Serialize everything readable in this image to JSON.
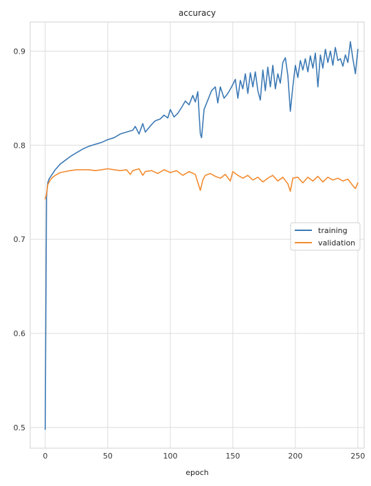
{
  "chart_data": {
    "type": "line",
    "title": "accuracy",
    "xlabel": "epoch",
    "ylabel": "",
    "xlim": [
      -12,
      255
    ],
    "ylim": [
      0.478,
      0.931
    ],
    "xticks": [
      0,
      50,
      100,
      150,
      200,
      250
    ],
    "yticks": [
      0.5,
      0.6,
      0.7,
      0.8,
      0.9
    ],
    "xtick_labels": [
      "0",
      "50",
      "100",
      "150",
      "200",
      "250"
    ],
    "ytick_labels": [
      "0.5",
      "0.6",
      "0.7",
      "0.8",
      "0.9"
    ],
    "grid": true,
    "legend_position": "right",
    "series": [
      {
        "name": "training",
        "color": "#3a78b4",
        "points": [
          [
            0,
            0.498
          ],
          [
            1,
            0.745
          ],
          [
            2,
            0.76
          ],
          [
            3,
            0.764
          ],
          [
            5,
            0.768
          ],
          [
            8,
            0.774
          ],
          [
            12,
            0.78
          ],
          [
            16,
            0.784
          ],
          [
            20,
            0.788
          ],
          [
            25,
            0.792
          ],
          [
            30,
            0.796
          ],
          [
            35,
            0.799
          ],
          [
            40,
            0.801
          ],
          [
            45,
            0.803
          ],
          [
            50,
            0.806
          ],
          [
            55,
            0.808
          ],
          [
            60,
            0.812
          ],
          [
            65,
            0.814
          ],
          [
            70,
            0.816
          ],
          [
            72,
            0.82
          ],
          [
            75,
            0.812
          ],
          [
            78,
            0.823
          ],
          [
            80,
            0.814
          ],
          [
            85,
            0.822
          ],
          [
            88,
            0.826
          ],
          [
            92,
            0.828
          ],
          [
            95,
            0.832
          ],
          [
            98,
            0.829
          ],
          [
            100,
            0.838
          ],
          [
            103,
            0.83
          ],
          [
            106,
            0.834
          ],
          [
            109,
            0.84
          ],
          [
            112,
            0.847
          ],
          [
            115,
            0.843
          ],
          [
            118,
            0.853
          ],
          [
            120,
            0.846
          ],
          [
            122,
            0.857
          ],
          [
            124,
            0.812
          ],
          [
            125,
            0.808
          ],
          [
            127,
            0.838
          ],
          [
            130,
            0.848
          ],
          [
            133,
            0.858
          ],
          [
            136,
            0.862
          ],
          [
            138,
            0.845
          ],
          [
            140,
            0.862
          ],
          [
            143,
            0.85
          ],
          [
            146,
            0.855
          ],
          [
            149,
            0.862
          ],
          [
            152,
            0.87
          ],
          [
            154,
            0.85
          ],
          [
            156,
            0.869
          ],
          [
            158,
            0.86
          ],
          [
            160,
            0.876
          ],
          [
            162,
            0.855
          ],
          [
            164,
            0.877
          ],
          [
            166,
            0.862
          ],
          [
            168,
            0.878
          ],
          [
            170,
            0.858
          ],
          [
            172,
            0.848
          ],
          [
            174,
            0.88
          ],
          [
            176,
            0.858
          ],
          [
            178,
            0.883
          ],
          [
            180,
            0.862
          ],
          [
            182,
            0.885
          ],
          [
            184,
            0.86
          ],
          [
            186,
            0.876
          ],
          [
            188,
            0.866
          ],
          [
            190,
            0.888
          ],
          [
            192,
            0.893
          ],
          [
            194,
            0.874
          ],
          [
            196,
            0.836
          ],
          [
            198,
            0.862
          ],
          [
            200,
            0.885
          ],
          [
            202,
            0.872
          ],
          [
            204,
            0.89
          ],
          [
            206,
            0.88
          ],
          [
            208,
            0.892
          ],
          [
            210,
            0.878
          ],
          [
            212,
            0.895
          ],
          [
            214,
            0.882
          ],
          [
            216,
            0.898
          ],
          [
            218,
            0.862
          ],
          [
            220,
            0.896
          ],
          [
            222,
            0.882
          ],
          [
            224,
            0.902
          ],
          [
            226,
            0.888
          ],
          [
            228,
            0.9
          ],
          [
            230,
            0.885
          ],
          [
            232,
            0.904
          ],
          [
            234,
            0.89
          ],
          [
            236,
            0.892
          ],
          [
            238,
            0.884
          ],
          [
            240,
            0.896
          ],
          [
            242,
            0.888
          ],
          [
            244,
            0.91
          ],
          [
            246,
            0.892
          ],
          [
            248,
            0.876
          ],
          [
            250,
            0.902
          ]
        ]
      },
      {
        "name": "validation",
        "color": "#f28a2e",
        "points": [
          [
            0,
            0.743
          ],
          [
            1,
            0.748
          ],
          [
            2,
            0.758
          ],
          [
            4,
            0.763
          ],
          [
            6,
            0.766
          ],
          [
            8,
            0.768
          ],
          [
            12,
            0.771
          ],
          [
            16,
            0.772
          ],
          [
            20,
            0.773
          ],
          [
            25,
            0.774
          ],
          [
            30,
            0.774
          ],
          [
            35,
            0.774
          ],
          [
            40,
            0.773
          ],
          [
            45,
            0.774
          ],
          [
            50,
            0.775
          ],
          [
            55,
            0.774
          ],
          [
            60,
            0.773
          ],
          [
            65,
            0.774
          ],
          [
            68,
            0.769
          ],
          [
            70,
            0.773
          ],
          [
            75,
            0.775
          ],
          [
            78,
            0.768
          ],
          [
            80,
            0.772
          ],
          [
            85,
            0.773
          ],
          [
            90,
            0.77
          ],
          [
            95,
            0.774
          ],
          [
            100,
            0.771
          ],
          [
            105,
            0.773
          ],
          [
            110,
            0.768
          ],
          [
            115,
            0.772
          ],
          [
            120,
            0.769
          ],
          [
            124,
            0.752
          ],
          [
            126,
            0.763
          ],
          [
            128,
            0.768
          ],
          [
            132,
            0.77
          ],
          [
            136,
            0.767
          ],
          [
            140,
            0.765
          ],
          [
            144,
            0.769
          ],
          [
            148,
            0.762
          ],
          [
            150,
            0.772
          ],
          [
            154,
            0.768
          ],
          [
            158,
            0.765
          ],
          [
            162,
            0.768
          ],
          [
            166,
            0.763
          ],
          [
            170,
            0.766
          ],
          [
            174,
            0.761
          ],
          [
            178,
            0.765
          ],
          [
            182,
            0.768
          ],
          [
            186,
            0.762
          ],
          [
            190,
            0.766
          ],
          [
            194,
            0.759
          ],
          [
            196,
            0.751
          ],
          [
            198,
            0.765
          ],
          [
            202,
            0.766
          ],
          [
            206,
            0.76
          ],
          [
            210,
            0.766
          ],
          [
            214,
            0.762
          ],
          [
            218,
            0.767
          ],
          [
            222,
            0.761
          ],
          [
            226,
            0.766
          ],
          [
            230,
            0.763
          ],
          [
            234,
            0.765
          ],
          [
            238,
            0.762
          ],
          [
            242,
            0.764
          ],
          [
            246,
            0.757
          ],
          [
            248,
            0.754
          ],
          [
            250,
            0.76
          ]
        ]
      }
    ]
  }
}
